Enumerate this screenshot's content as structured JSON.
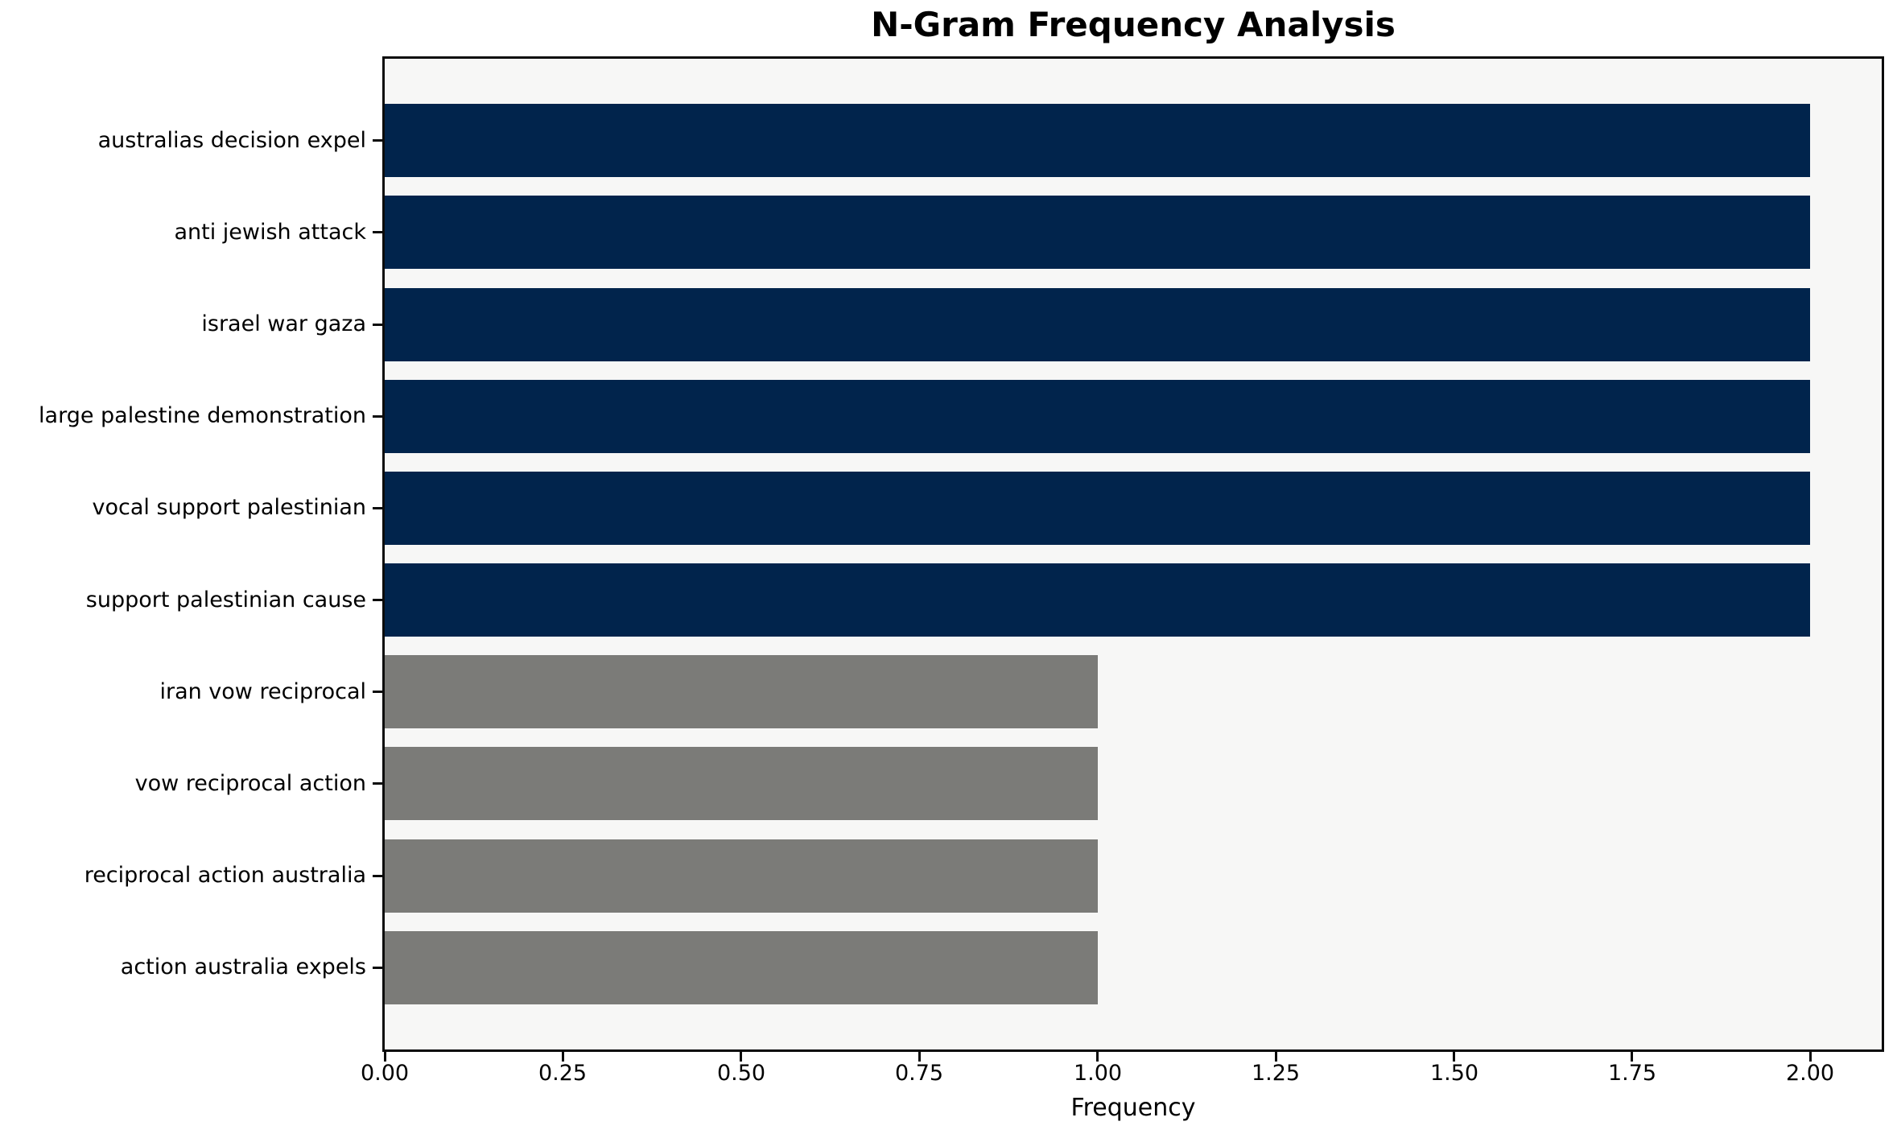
{
  "chart_data": {
    "type": "bar",
    "orientation": "horizontal",
    "title": "N-Gram Frequency Analysis",
    "xlabel": "Frequency",
    "ylabel": "",
    "categories": [
      "australias decision expel",
      "anti jewish attack",
      "israel war gaza",
      "large palestine demonstration",
      "vocal support palestinian",
      "support palestinian cause",
      "iran vow reciprocal",
      "vow reciprocal action",
      "reciprocal action australia",
      "action australia expels"
    ],
    "values": [
      2,
      2,
      2,
      2,
      2,
      2,
      1,
      1,
      1,
      1
    ],
    "bar_colors": [
      "#01244c",
      "#01244c",
      "#01244c",
      "#01244c",
      "#01244c",
      "#01244c",
      "#7b7b78",
      "#7b7b78",
      "#7b7b78",
      "#7b7b78"
    ],
    "x_tick_values": [
      0,
      0.25,
      0.5,
      0.75,
      1.0,
      1.25,
      1.5,
      1.75,
      2.0
    ],
    "x_tick_labels": [
      "0.00",
      "0.25",
      "0.50",
      "0.75",
      "1.00",
      "1.25",
      "1.50",
      "1.75",
      "2.00"
    ],
    "xlim": [
      0,
      2.1
    ],
    "grid": false,
    "legend": "none",
    "colors": {
      "bar_highlight": "#01244c",
      "bar_muted": "#7b7b78",
      "plot_background": "#f7f7f6",
      "figure_background": "#ffffff",
      "spine": "#0b0b0b",
      "text": "#000000"
    }
  }
}
